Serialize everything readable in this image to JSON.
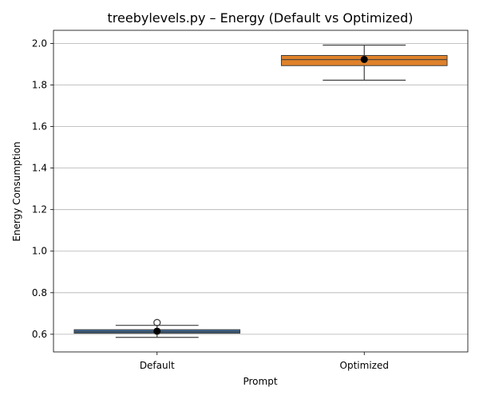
{
  "chart_data": {
    "type": "box",
    "title": "treebylevels.py – Energy (Default vs Optimized)",
    "xlabel": "Prompt",
    "ylabel": "Energy Consumption",
    "categories": [
      "Default",
      "Optimized"
    ],
    "ylim": [
      0.515,
      2.063
    ],
    "yticks": [
      0.6,
      0.8,
      1.0,
      1.2,
      1.4,
      1.6,
      1.8,
      2.0
    ],
    "ytick_labels": [
      "0.6",
      "0.8",
      "1.0",
      "1.2",
      "1.4",
      "1.6",
      "1.8",
      "2.0"
    ],
    "grid": "horizontal",
    "series": [
      {
        "color": "#3a6e9f",
        "whisker_low": 0.585,
        "q1": 0.605,
        "median": 0.612,
        "q3": 0.622,
        "whisker_high": 0.643,
        "mean": 0.615,
        "outliers": [
          0.656
        ]
      },
      {
        "color": "#e0822a",
        "whisker_low": 1.823,
        "q1": 1.893,
        "median": 1.922,
        "q3": 1.942,
        "whisker_high": 1.992,
        "mean": 1.923,
        "outliers": []
      }
    ]
  }
}
